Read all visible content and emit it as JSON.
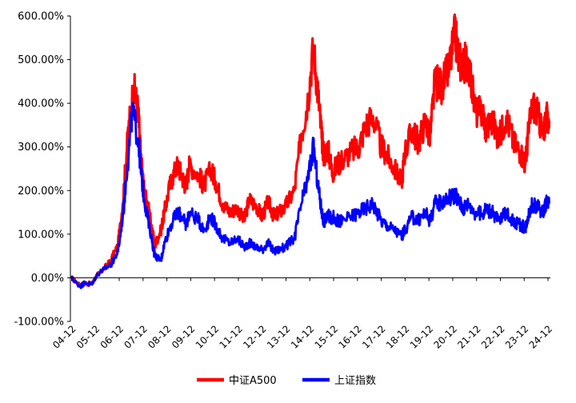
{
  "chart_data": {
    "type": "line",
    "title": "",
    "xlabel": "",
    "ylabel": "",
    "ylim": [
      -100,
      600
    ],
    "y_ticks": [
      -100,
      0,
      100,
      200,
      300,
      400,
      500,
      600
    ],
    "y_tick_labels": [
      "-100.00%",
      "0.00%",
      "100.00%",
      "200.00%",
      "300.00%",
      "400.00%",
      "500.00%",
      "600.00%"
    ],
    "x_range": [
      2004.9,
      2025.05
    ],
    "x_tick_positions": [
      2004.95,
      2005.95,
      2006.95,
      2007.95,
      2008.95,
      2009.95,
      2010.95,
      2011.95,
      2012.95,
      2013.95,
      2014.95,
      2015.95,
      2016.95,
      2017.95,
      2018.95,
      2019.95,
      2020.95,
      2021.95,
      2022.95,
      2023.95,
      2024.95
    ],
    "x_tick_labels": [
      "04-12",
      "05-12",
      "06-12",
      "07-12",
      "08-12",
      "09-12",
      "10-12",
      "11-12",
      "12-12",
      "13-12",
      "14-12",
      "15-12",
      "16-12",
      "17-12",
      "18-12",
      "19-12",
      "20-12",
      "21-12",
      "22-12",
      "23-12",
      "24-12"
    ],
    "grid": false,
    "legend_position": "bottom",
    "series": [
      {
        "name": "中证A500",
        "color": "#ff0000",
        "x": [
          2004.95,
          2005.3,
          2005.5,
          2005.8,
          2006.0,
          2006.3,
          2006.6,
          2006.9,
          2007.1,
          2007.3,
          2007.55,
          2007.75,
          2007.85,
          2008.0,
          2008.2,
          2008.45,
          2008.7,
          2008.85,
          2009.1,
          2009.4,
          2009.6,
          2009.75,
          2009.9,
          2010.3,
          2010.5,
          2010.8,
          2011.0,
          2011.3,
          2011.6,
          2011.9,
          2012.2,
          2012.4,
          2012.7,
          2012.95,
          2013.2,
          2013.45,
          2013.65,
          2013.9,
          2014.3,
          2014.6,
          2014.85,
          2015.1,
          2015.3,
          2015.45,
          2015.55,
          2015.7,
          2015.9,
          2016.1,
          2016.3,
          2016.7,
          2017.0,
          2017.3,
          2017.6,
          2017.95,
          2018.2,
          2018.5,
          2018.8,
          2018.95,
          2019.25,
          2019.5,
          2019.8,
          2020.0,
          2020.2,
          2020.5,
          2020.8,
          2021.05,
          2021.2,
          2021.4,
          2021.6,
          2021.9,
          2022.2,
          2022.35,
          2022.6,
          2022.9,
          2023.2,
          2023.5,
          2023.8,
          2024.0,
          2024.1,
          2024.3,
          2024.55,
          2024.75,
          2024.85,
          2025.0
        ],
        "values": [
          0,
          -18,
          -12,
          -15,
          5,
          20,
          40,
          75,
          170,
          320,
          440,
          380,
          280,
          200,
          150,
          75,
          110,
          150,
          220,
          260,
          230,
          210,
          260,
          235,
          210,
          250,
          220,
          170,
          150,
          160,
          130,
          180,
          165,
          140,
          175,
          140,
          150,
          160,
          200,
          330,
          400,
          530,
          420,
          320,
          280,
          300,
          240,
          260,
          270,
          290,
          300,
          350,
          370,
          300,
          280,
          250,
          220,
          290,
          340,
          310,
          360,
          320,
          450,
          440,
          480,
          560,
          500,
          490,
          500,
          380,
          380,
          340,
          360,
          320,
          370,
          310,
          290,
          260,
          320,
          400,
          370,
          320,
          370,
          360
        ]
      },
      {
        "name": "上证指数",
        "color": "#0000ff",
        "x": [
          2004.95,
          2005.3,
          2005.5,
          2005.8,
          2006.0,
          2006.3,
          2006.6,
          2006.9,
          2007.1,
          2007.3,
          2007.5,
          2007.75,
          2007.85,
          2008.0,
          2008.2,
          2008.45,
          2008.7,
          2008.85,
          2009.1,
          2009.4,
          2009.6,
          2009.75,
          2009.9,
          2010.3,
          2010.5,
          2010.8,
          2011.0,
          2011.3,
          2011.6,
          2011.9,
          2012.2,
          2012.4,
          2012.7,
          2012.95,
          2013.2,
          2013.45,
          2013.65,
          2013.9,
          2014.3,
          2014.6,
          2014.85,
          2015.1,
          2015.3,
          2015.45,
          2015.55,
          2015.7,
          2015.9,
          2016.1,
          2016.3,
          2016.7,
          2017.0,
          2017.3,
          2017.6,
          2017.95,
          2018.2,
          2018.5,
          2018.8,
          2018.95,
          2019.25,
          2019.5,
          2019.8,
          2020.0,
          2020.2,
          2020.5,
          2020.8,
          2021.05,
          2021.2,
          2021.4,
          2021.6,
          2021.9,
          2022.2,
          2022.35,
          2022.6,
          2022.9,
          2023.2,
          2023.5,
          2023.8,
          2024.0,
          2024.1,
          2024.3,
          2024.55,
          2024.75,
          2024.85,
          2025.0
        ],
        "values": [
          0,
          -20,
          -12,
          -15,
          5,
          20,
          30,
          60,
          140,
          260,
          380,
          320,
          250,
          180,
          120,
          50,
          40,
          80,
          120,
          150,
          140,
          120,
          150,
          130,
          110,
          140,
          120,
          90,
          80,
          90,
          70,
          80,
          70,
          65,
          80,
          60,
          65,
          70,
          90,
          170,
          220,
          300,
          210,
          150,
          130,
          140,
          140,
          130,
          130,
          140,
          150,
          160,
          170,
          130,
          120,
          110,
          95,
          110,
          140,
          130,
          150,
          130,
          170,
          175,
          185,
          190,
          175,
          160,
          170,
          150,
          145,
          160,
          150,
          130,
          150,
          130,
          120,
          115,
          140,
          170,
          160,
          150,
          170,
          170
        ]
      }
    ]
  }
}
